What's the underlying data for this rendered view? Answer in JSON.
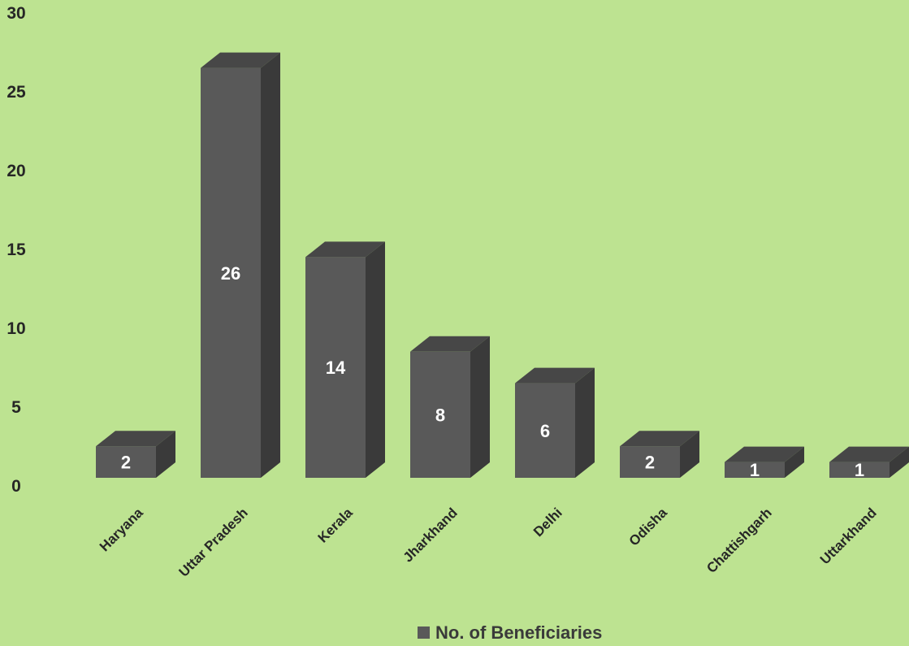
{
  "chart_data": {
    "type": "bar",
    "style": "3d-column",
    "categories": [
      "Haryana",
      "Uttar Pradesh",
      "Kerala",
      "Jharkhand",
      "Delhi",
      "Odisha",
      "Chattishgarh",
      "Uttarkhand"
    ],
    "series": [
      {
        "name": "No. of Beneficiaries",
        "values": [
          2,
          26,
          14,
          8,
          6,
          2,
          1,
          1
        ]
      }
    ],
    "ylim": [
      0,
      30
    ],
    "yticks": [
      "0",
      "5",
      "10",
      "15",
      "20",
      "25",
      "30"
    ],
    "data_labels": [
      "2",
      "26",
      "14",
      "8",
      "6",
      "2",
      "1",
      "1"
    ],
    "grid": false,
    "legend_position": "bottom",
    "colors": {
      "background": "#bde391",
      "bar_front": "#595959",
      "bar_top": "#474747",
      "bar_side": "#3a3a3a",
      "label": "#ffffff",
      "axis_text": "#262626"
    }
  }
}
